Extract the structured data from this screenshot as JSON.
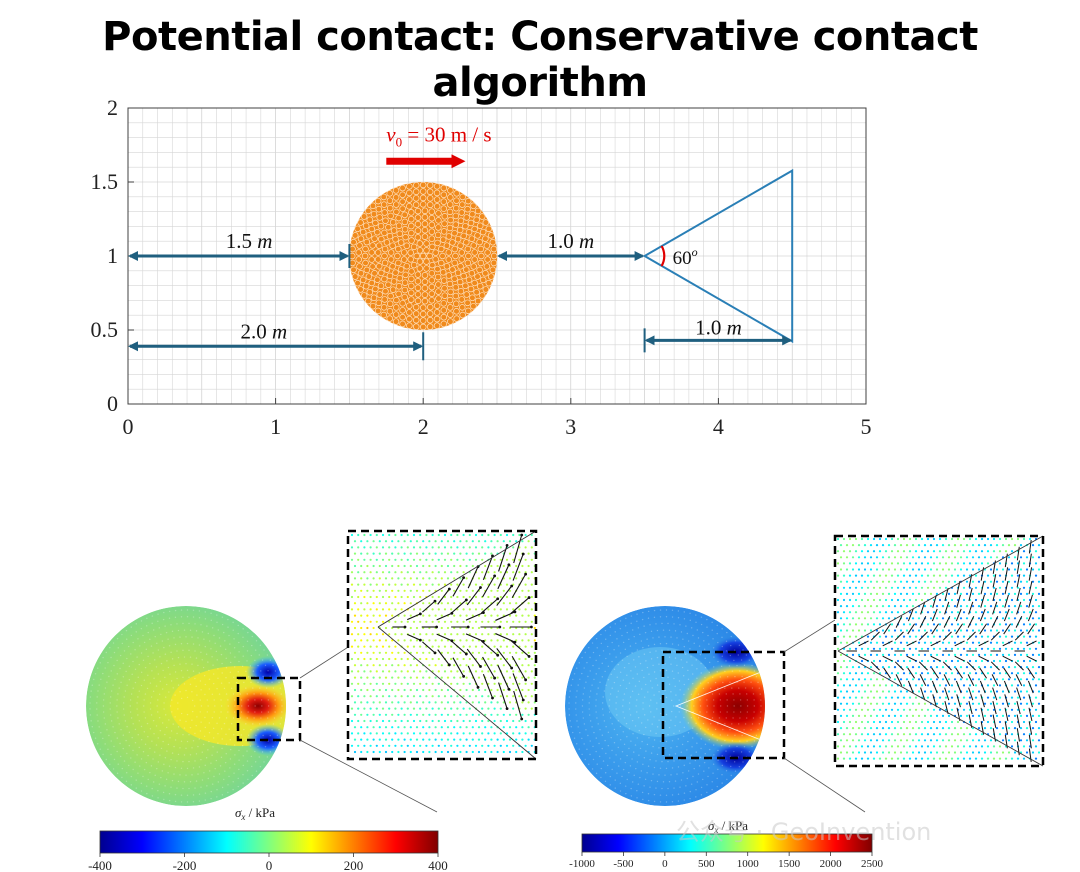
{
  "slide": {
    "title": "Potential contact: Conservative contact algorithm",
    "watermark": "公众号 · GeoInvention"
  },
  "colors": {
    "grid": "#d6d6d6",
    "annotation": "#1f5f7f",
    "triangle": "#2a7fb6",
    "particles": "#f08a1c",
    "velocity": "#e00000"
  },
  "chart_data": [
    {
      "type": "scatter",
      "title": "",
      "xlabel": "",
      "ylabel": "",
      "xlim": [
        0,
        5
      ],
      "ylim": [
        0,
        2
      ],
      "xticks": [
        "0",
        "1",
        "2",
        "3",
        "4",
        "5"
      ],
      "yticks": [
        "0",
        "0.5",
        "1",
        "1.5",
        "2"
      ],
      "grid": true,
      "disk": {
        "center": [
          2.0,
          1.0
        ],
        "radius": 0.5
      },
      "triangle": {
        "vertices": [
          [
            3.5,
            1.0
          ],
          [
            4.5,
            1.577
          ],
          [
            4.5,
            0.423
          ]
        ]
      },
      "annotations": [
        {
          "label": "v0 = 30 m / s",
          "text_main": "v",
          "text_sub": "0",
          "text_rest": " = 30 m / s",
          "arrow_from": [
            1.75,
            1.64
          ],
          "arrow_to": [
            2.3,
            1.64
          ]
        },
        {
          "label": "1.5 m",
          "num": "1.5 ",
          "unit": "m",
          "from": [
            0,
            1.0
          ],
          "to": [
            1.5,
            1.0
          ]
        },
        {
          "label": "2.0 m",
          "num": "2.0 ",
          "unit": "m",
          "from": [
            0,
            0.39
          ],
          "to": [
            2.0,
            0.39
          ]
        },
        {
          "label": "1.0 m",
          "num": "1.0 ",
          "unit": "m",
          "from": [
            2.5,
            1.0
          ],
          "to": [
            3.5,
            1.0
          ]
        },
        {
          "label": "1.0 m",
          "num": "1.0 ",
          "unit": "m",
          "from": [
            3.5,
            0.43
          ],
          "to": [
            4.5,
            0.43
          ]
        },
        {
          "label": "60o",
          "num": "60",
          "sup": "o"
        }
      ]
    },
    {
      "type": "heatmap",
      "title": "",
      "colorbar_label": "σx / kPa",
      "cbar_main": "σ",
      "cbar_sub": "x",
      "cbar_rest": " / kPa",
      "range": [
        -400,
        400
      ],
      "ticks": [
        "-400",
        "-200",
        "0",
        "200",
        "400"
      ]
    },
    {
      "type": "heatmap",
      "title": "",
      "colorbar_label": "σx / kPa",
      "cbar_main": "σ",
      "cbar_sub": "x",
      "cbar_rest": " / kPa",
      "range": [
        -1000,
        2500
      ],
      "ticks": [
        "-1000",
        "-500",
        "0",
        "500",
        "1000",
        "1500",
        "2000",
        "2500"
      ]
    }
  ]
}
